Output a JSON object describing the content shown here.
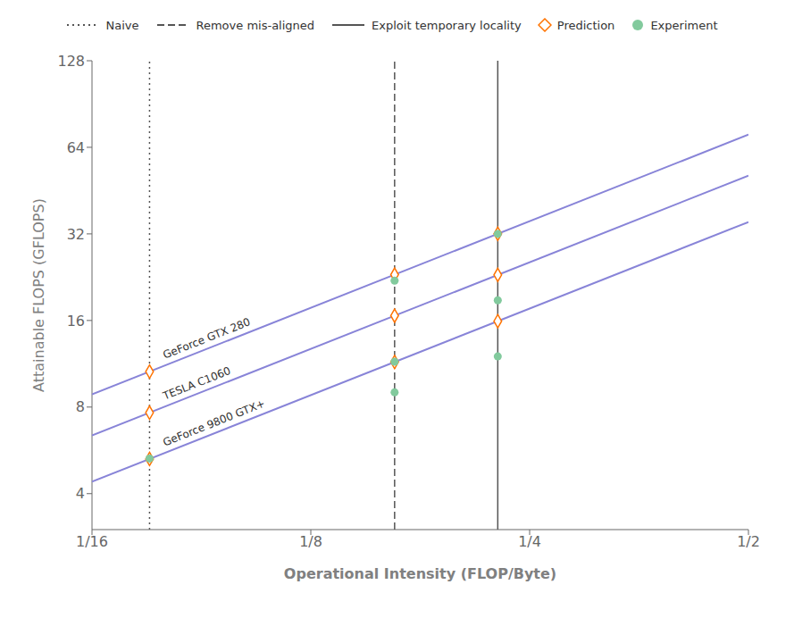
{
  "chart_data": {
    "type": "scatter",
    "xlabel": "Operational Intensity (FLOP/Byte)",
    "ylabel": "Attainable FLOPS (GFLOPS)",
    "log": true,
    "xlim": [
      0.0625,
      0.5
    ],
    "xticks": [
      {
        "value": 0.0625,
        "label": "1/16"
      },
      {
        "value": 0.125,
        "label": "1/8"
      },
      {
        "value": 0.25,
        "label": "1/4"
      },
      {
        "value": 0.5,
        "label": "1/2"
      }
    ],
    "ylim": [
      3,
      128
    ],
    "yticks": [
      4,
      8,
      16,
      32,
      64,
      128
    ],
    "grid": false,
    "legend": "top",
    "series": [
      {
        "name": "GeForce GTX 280",
        "type": "line",
        "color": "#8884d8",
        "line_style": "solid",
        "x": [
          0.0625,
          0.5
        ],
        "values": [
          8.85625,
          70.85
        ]
      },
      {
        "name": "TESLA C1060",
        "type": "line",
        "color": "#8884d8",
        "line_style": "solid",
        "x": [
          0.0625,
          0.5
        ],
        "values": [
          6.375,
          51.0
        ]
      },
      {
        "name": "GeForce 9800 GTX+",
        "type": "line",
        "color": "#8884d8",
        "line_style": "solid",
        "x": [
          0.0625,
          0.5
        ],
        "values": [
          4.4,
          35.2
        ]
      },
      {
        "name": "Naive",
        "type": "vline",
        "color": "#555555",
        "line_style": "dotted",
        "x": [
          0.075
        ]
      },
      {
        "name": "Remove mis-aligned",
        "type": "vline",
        "color": "#555555",
        "line_style": "dashed",
        "x": [
          0.163
        ]
      },
      {
        "name": "Exploit temporary locality",
        "type": "vline",
        "color": "#555555",
        "line_style": "solid",
        "x": [
          0.226
        ]
      },
      {
        "name": "Prediction",
        "type": "scatter",
        "marker": "diamond",
        "color": "#ff7300",
        "x": [
          0.075,
          0.075,
          0.075,
          0.163,
          0.163,
          0.163,
          0.226,
          0.226,
          0.226
        ],
        "values": [
          10.6275,
          7.65,
          5.28,
          23.0971,
          16.626,
          11.4752,
          32.0242,
          23.052,
          15.9104
        ]
      },
      {
        "name": "Experiment",
        "type": "scatter",
        "marker": "circle",
        "color": "#82ca9d",
        "x": [
          0.075,
          0.163,
          0.163,
          0.163,
          0.226,
          0.226,
          0.226
        ],
        "values": [
          5.3,
          22.0,
          11.5,
          9.0,
          32.0,
          18.8,
          12.0
        ]
      }
    ]
  }
}
